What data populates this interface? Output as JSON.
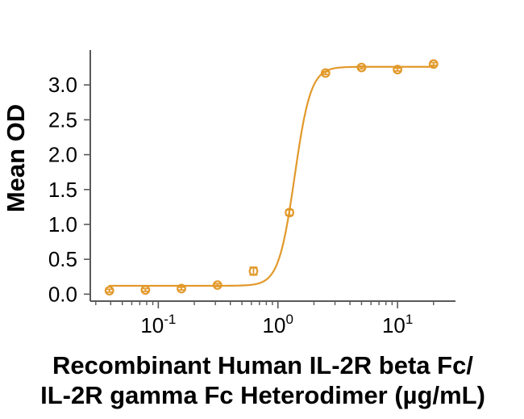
{
  "chart_data": {
    "type": "line",
    "title": "",
    "ylabel": "Mean OD",
    "xlabel_line1": "Recombinant Human IL-2R beta Fc/",
    "xlabel_line2": "IL-2R gamma Fc Heterodimer (µg/mL)",
    "x_scale": "log10",
    "xlim": [
      0.027,
      30.5
    ],
    "ylim": [
      -0.1,
      3.5
    ],
    "grid": false,
    "legend": "none",
    "colors": {
      "series": "#E2992B",
      "axis": "#58595B",
      "text": "#000000",
      "background": "#FFFFFF"
    },
    "y_ticks": [
      {
        "value": 0.0,
        "label": "0.0"
      },
      {
        "value": 0.5,
        "label": "0.5"
      },
      {
        "value": 1.0,
        "label": "1.0"
      },
      {
        "value": 1.5,
        "label": "1.5"
      },
      {
        "value": 2.0,
        "label": "2.0"
      },
      {
        "value": 2.5,
        "label": "2.5"
      },
      {
        "value": 3.0,
        "label": "3.0"
      }
    ],
    "x_major_ticks": [
      {
        "value": 0.1,
        "base": "10",
        "exp": "-1"
      },
      {
        "value": 1,
        "base": "10",
        "exp": "0"
      },
      {
        "value": 10,
        "base": "10",
        "exp": "1"
      }
    ],
    "x_minor_ticks": [
      0.03,
      0.04,
      0.05,
      0.06,
      0.07,
      0.08,
      0.09,
      0.2,
      0.3,
      0.4,
      0.5,
      0.6,
      0.7,
      0.8,
      0.9,
      2,
      3,
      4,
      5,
      6,
      7,
      8,
      9,
      20
    ],
    "series": [
      {
        "marker": "open-circle",
        "x": [
          0.039,
          0.078,
          0.156,
          0.3125,
          0.625,
          1.25,
          2.5,
          5,
          10,
          20
        ],
        "y": [
          0.05,
          0.06,
          0.08,
          0.13,
          0.33,
          1.17,
          3.17,
          3.25,
          3.22,
          3.3
        ],
        "y_err": [
          0.02,
          0.02,
          0.02,
          0.02,
          0.055,
          0.04,
          0.02,
          0.02,
          0.02,
          0.02
        ],
        "fit": {
          "model": "4PL",
          "bottom": 0.12,
          "top": 3.26,
          "ec50": 1.38,
          "hill": 6.5
        }
      }
    ]
  }
}
